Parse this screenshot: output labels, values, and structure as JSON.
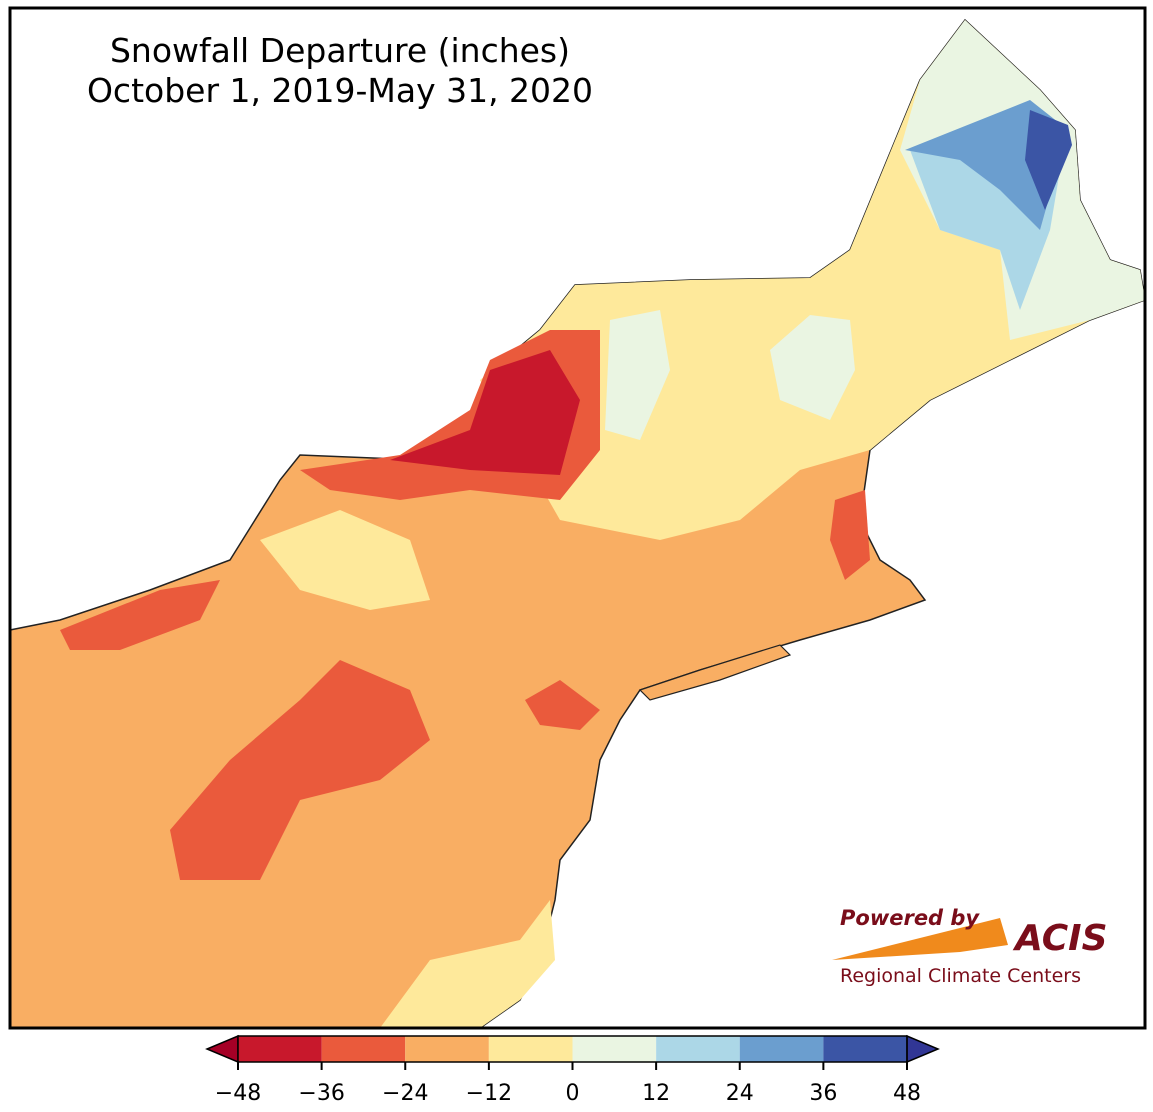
{
  "title_lines": [
    "Snowfall Departure (inches)",
    "October 1, 2019-May 31, 2020"
  ],
  "colorbar": {
    "ticks": [
      {
        "value": -48,
        "label": "−48"
      },
      {
        "value": -36,
        "label": "−36"
      },
      {
        "value": -24,
        "label": "−24"
      },
      {
        "value": -12,
        "label": "−12"
      },
      0,
      12,
      24,
      36,
      48
    ],
    "colors": [
      "#a50026",
      "#c8182c",
      "#ea5a3c",
      "#f9ae63",
      "#fee99b",
      "#eaf5e2",
      "#acd7e7",
      "#6b9ecf",
      "#3b55a5",
      "#313695"
    ]
  },
  "logo": {
    "powered": "Powered by",
    "name": "ACIS",
    "tagline": "Regional Climate Centers"
  }
}
